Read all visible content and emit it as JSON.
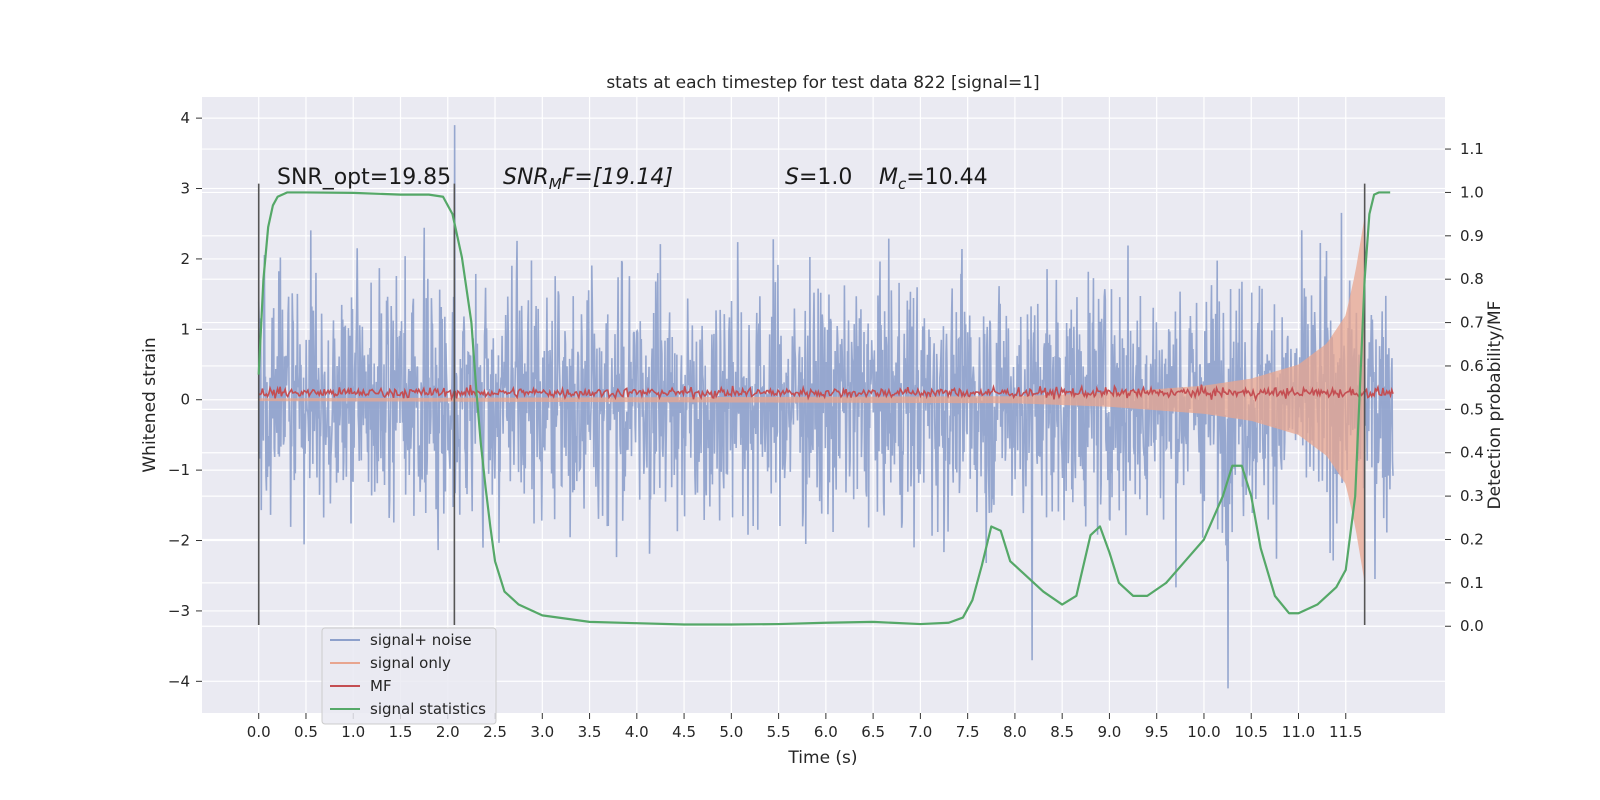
{
  "chart_data": {
    "type": "line",
    "title": "stats at each timestep for test data 822 [signal=1]",
    "xlabel": "Time (s)",
    "ylabel": "Whitened strain",
    "ylabel_right": "Detection probability/MF",
    "xlim": [
      -0.6,
      12.55
    ],
    "ylim": [
      -4.45,
      4.3
    ],
    "ylim_right": [
      -0.2,
      1.22
    ],
    "x_ticks": [
      "0.0",
      "0.5",
      "1.0",
      "1.5",
      "2.0",
      "2.5",
      "3.0",
      "3.5",
      "4.0",
      "4.5",
      "5.0",
      "5.5",
      "6.0",
      "6.5",
      "7.0",
      "7.5",
      "8.0",
      "8.5",
      "9.0",
      "9.5",
      "10.0",
      "10.5",
      "11.0",
      "11.5"
    ],
    "y_ticks": [
      "4",
      "3",
      "2",
      "1",
      "0",
      "−1",
      "−2",
      "−3",
      "−4"
    ],
    "y_ticks_right": [
      "1.1",
      "1.0",
      "0.9",
      "0.8",
      "0.7",
      "0.6",
      "0.5",
      "0.4",
      "0.3",
      "0.2",
      "0.1",
      "0.0"
    ],
    "annotations": {
      "snr_opt": "SNR_opt=19.85",
      "snr_mf_main": "SNR",
      "snr_mf_sub": "M",
      "snr_mf_rest": "F=[19.14]",
      "s_main": "S",
      "s_rest": "=1.0",
      "mc_main": "M",
      "mc_sub": "c",
      "mc_rest": "=10.44"
    },
    "vertical_lines": [
      0.0,
      2.07,
      11.7
    ],
    "legend": {
      "position": "lower-left",
      "entries": [
        "signal+ noise",
        "signal only",
        "MF",
        "signal statistics"
      ]
    },
    "colors": {
      "signal_noise": "#8da0cb",
      "signal_only": "#e8a58f",
      "mf": "#c44e52",
      "signal_statistics": "#55a868",
      "plot_bg": "#eaeaf2",
      "grid": "#ffffff",
      "vline": "#555555"
    },
    "series": [
      {
        "name": "signal+ noise",
        "description_values": "noise band spanning roughly -2.4 to 2.5 whitened strain, peaks near +3.9 and -4.1",
        "t_range": [
          0.0,
          12.0
        ],
        "std": 0.85
      },
      {
        "name": "signal only",
        "t_range": [
          0.0,
          11.7
        ],
        "envelope_t": [
          0.0,
          8.0,
          9.0,
          10.0,
          10.5,
          11.0,
          11.3,
          11.5,
          11.6,
          11.7
        ],
        "envelope_y": [
          0.02,
          0.05,
          0.1,
          0.2,
          0.3,
          0.5,
          0.8,
          1.2,
          1.8,
          2.6
        ]
      },
      {
        "name": "MF",
        "t_range": [
          0.0,
          12.0
        ],
        "mean": 0.1,
        "amplitude": 0.08
      },
      {
        "name": "signal statistics",
        "x": [
          0.0,
          0.05,
          0.1,
          0.15,
          0.2,
          0.3,
          0.5,
          1.0,
          1.5,
          1.8,
          1.95,
          2.05,
          2.15,
          2.25,
          2.3,
          2.35,
          2.4,
          2.45,
          2.5,
          2.6,
          2.75,
          3.0,
          3.5,
          4.0,
          4.5,
          5.0,
          5.5,
          6.0,
          6.5,
          7.0,
          7.3,
          7.45,
          7.55,
          7.65,
          7.75,
          7.85,
          7.95,
          8.1,
          8.3,
          8.5,
          8.65,
          8.8,
          8.9,
          9.0,
          9.1,
          9.25,
          9.4,
          9.6,
          9.8,
          10.0,
          10.2,
          10.3,
          10.4,
          10.5,
          10.6,
          10.75,
          10.9,
          11.0,
          11.2,
          11.4,
          11.5,
          11.6,
          11.65,
          11.7,
          11.75,
          11.8,
          11.85,
          11.9,
          11.97
        ],
        "y": [
          0.58,
          0.8,
          0.92,
          0.97,
          0.99,
          1.0,
          1.0,
          0.999,
          0.995,
          0.995,
          0.99,
          0.95,
          0.85,
          0.7,
          0.55,
          0.42,
          0.32,
          0.23,
          0.15,
          0.08,
          0.05,
          0.025,
          0.01,
          0.007,
          0.004,
          0.004,
          0.005,
          0.008,
          0.01,
          0.005,
          0.008,
          0.02,
          0.06,
          0.14,
          0.23,
          0.22,
          0.15,
          0.12,
          0.08,
          0.05,
          0.07,
          0.21,
          0.23,
          0.17,
          0.1,
          0.07,
          0.07,
          0.1,
          0.15,
          0.2,
          0.3,
          0.37,
          0.37,
          0.3,
          0.18,
          0.07,
          0.03,
          0.03,
          0.05,
          0.09,
          0.13,
          0.3,
          0.55,
          0.8,
          0.95,
          0.995,
          1.0,
          1.0,
          1.0
        ],
        "axis": "right"
      }
    ]
  }
}
